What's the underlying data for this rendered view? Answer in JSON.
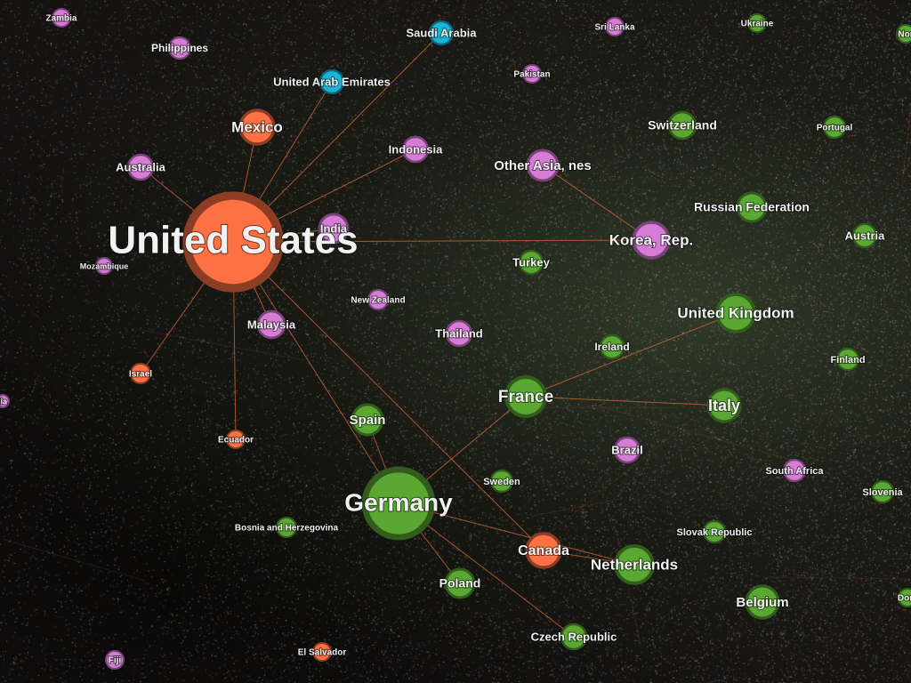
{
  "graph": {
    "type": "network",
    "group_colors": {
      "americas": "#ff7043",
      "asia_pacific": "#d67bd6",
      "europe": "#5aa732",
      "middle_east": "#19b4d6"
    },
    "edge_color": "#d9683a",
    "nodes": [
      {
        "id": "us",
        "label": "United States",
        "group": "americas",
        "size": 52,
        "font": 44
      },
      {
        "id": "mexico",
        "label": "Mexico",
        "group": "americas",
        "size": 19,
        "font": 17
      },
      {
        "id": "canada",
        "label": "Canada",
        "group": "americas",
        "size": 19,
        "font": 16
      },
      {
        "id": "israel",
        "label": "Israel",
        "group": "americas",
        "size": 11,
        "font": 10
      },
      {
        "id": "ecuador",
        "label": "Ecuador",
        "group": "americas",
        "size": 10,
        "font": 10
      },
      {
        "id": "elsalvador",
        "label": "El Salvador",
        "group": "americas",
        "size": 10,
        "font": 10
      },
      {
        "id": "saudi",
        "label": "Saudi Arabia",
        "group": "middle_east",
        "size": 13,
        "font": 13
      },
      {
        "id": "uae",
        "label": "United Arab Emirates",
        "group": "middle_east",
        "size": 13,
        "font": 13
      },
      {
        "id": "zambia",
        "label": "Zambia",
        "group": "asia_pacific",
        "size": 10,
        "font": 10
      },
      {
        "id": "philippines",
        "label": "Philippines",
        "group": "asia_pacific",
        "size": 12,
        "font": 12
      },
      {
        "id": "srilanka",
        "label": "Sri Lanka",
        "group": "asia_pacific",
        "size": 10,
        "font": 10
      },
      {
        "id": "pakistan",
        "label": "Pakistan",
        "group": "asia_pacific",
        "size": 10,
        "font": 10
      },
      {
        "id": "indonesia",
        "label": "Indonesia",
        "group": "asia_pacific",
        "size": 14,
        "font": 13
      },
      {
        "id": "otherasia",
        "label": "Other Asia, nes",
        "group": "asia_pacific",
        "size": 17,
        "font": 15
      },
      {
        "id": "australia",
        "label": "Australia",
        "group": "asia_pacific",
        "size": 14,
        "font": 13
      },
      {
        "id": "india",
        "label": "India",
        "group": "asia_pacific",
        "size": 16,
        "font": 13
      },
      {
        "id": "korea",
        "label": "Korea, Rep.",
        "group": "asia_pacific",
        "size": 20,
        "font": 17
      },
      {
        "id": "mozambique",
        "label": "Mozambique",
        "group": "asia_pacific",
        "size": 9,
        "font": 9
      },
      {
        "id": "newzealand",
        "label": "New Zealand",
        "group": "asia_pacific",
        "size": 11,
        "font": 10
      },
      {
        "id": "malaysia",
        "label": "Malaysia",
        "group": "asia_pacific",
        "size": 15,
        "font": 13
      },
      {
        "id": "thailand",
        "label": "Thailand",
        "group": "asia_pacific",
        "size": 14,
        "font": 13
      },
      {
        "id": "brazil",
        "label": "Brazil",
        "group": "asia_pacific",
        "size": 14,
        "font": 13
      },
      {
        "id": "southafrica",
        "label": "South Africa",
        "group": "asia_pacific",
        "size": 12,
        "font": 11
      },
      {
        "id": "fiji",
        "label": "Fiji",
        "group": "asia_pacific",
        "size": 10,
        "font": 10
      },
      {
        "id": "lia",
        "label": "lia",
        "group": "asia_pacific",
        "size": 7,
        "font": 9
      },
      {
        "id": "ukraine",
        "label": "Ukraine",
        "group": "europe",
        "size": 10,
        "font": 10
      },
      {
        "id": "nor",
        "label": "Nor",
        "group": "europe",
        "size": 10,
        "font": 10
      },
      {
        "id": "switzerland",
        "label": "Switzerland",
        "group": "europe",
        "size": 15,
        "font": 14
      },
      {
        "id": "portugal",
        "label": "Portugal",
        "group": "europe",
        "size": 12,
        "font": 10
      },
      {
        "id": "russia",
        "label": "Russian Federation",
        "group": "europe",
        "size": 16,
        "font": 14
      },
      {
        "id": "austria",
        "label": "Austria",
        "group": "europe",
        "size": 13,
        "font": 13
      },
      {
        "id": "turkey",
        "label": "Turkey",
        "group": "europe",
        "size": 13,
        "font": 13
      },
      {
        "id": "uk",
        "label": "United Kingdom",
        "group": "europe",
        "size": 21,
        "font": 17
      },
      {
        "id": "ireland",
        "label": "Ireland",
        "group": "europe",
        "size": 13,
        "font": 12
      },
      {
        "id": "finland",
        "label": "Finland",
        "group": "europe",
        "size": 12,
        "font": 11
      },
      {
        "id": "france",
        "label": "France",
        "group": "europe",
        "size": 22,
        "font": 19
      },
      {
        "id": "italy",
        "label": "Italy",
        "group": "europe",
        "size": 18,
        "font": 18
      },
      {
        "id": "spain",
        "label": "Spain",
        "group": "europe",
        "size": 17,
        "font": 15
      },
      {
        "id": "germany",
        "label": "Germany",
        "group": "europe",
        "size": 38,
        "font": 28
      },
      {
        "id": "sweden",
        "label": "Sweden",
        "group": "europe",
        "size": 12,
        "font": 11
      },
      {
        "id": "bosnia",
        "label": "Bosnia and Herzegovina",
        "group": "europe",
        "size": 11,
        "font": 10
      },
      {
        "id": "slovakia",
        "label": "Slovak Republic",
        "group": "europe",
        "size": 12,
        "font": 11
      },
      {
        "id": "slovenia",
        "label": "Slovenia",
        "group": "europe",
        "size": 12,
        "font": 11
      },
      {
        "id": "netherlands",
        "label": "Netherlands",
        "group": "europe",
        "size": 21,
        "font": 17
      },
      {
        "id": "poland",
        "label": "Poland",
        "group": "europe",
        "size": 16,
        "font": 14
      },
      {
        "id": "belgium",
        "label": "Belgium",
        "group": "europe",
        "size": 18,
        "font": 15
      },
      {
        "id": "czech",
        "label": "Czech Republic",
        "group": "europe",
        "size": 14,
        "font": 13
      },
      {
        "id": "dom",
        "label": "Dom",
        "group": "europe",
        "size": 10,
        "font": 10
      }
    ],
    "edges": [
      [
        "us",
        "mexico"
      ],
      [
        "us",
        "canada"
      ],
      [
        "us",
        "germany"
      ],
      [
        "us",
        "indonesia"
      ],
      [
        "us",
        "korea"
      ],
      [
        "us",
        "saudi"
      ],
      [
        "us",
        "malaysia"
      ],
      [
        "us",
        "israel"
      ],
      [
        "us",
        "ecuador"
      ],
      [
        "us",
        "australia"
      ],
      [
        "us",
        "india"
      ],
      [
        "us",
        "uae"
      ],
      [
        "germany",
        "france"
      ],
      [
        "germany",
        "netherlands"
      ],
      [
        "germany",
        "spain"
      ],
      [
        "germany",
        "poland"
      ],
      [
        "germany",
        "czech"
      ],
      [
        "france",
        "italy"
      ],
      [
        "korea",
        "otherasia"
      ],
      [
        "uk",
        "france"
      ],
      [
        "canada",
        "netherlands"
      ]
    ]
  }
}
